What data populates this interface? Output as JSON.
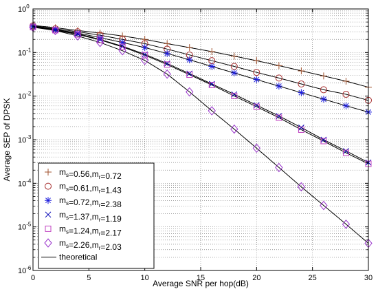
{
  "chart_data": {
    "type": "line",
    "xlabel": "Average SNR per hop(dB)",
    "ylabel": "Average SEP of DPSK",
    "xlim": [
      0,
      30
    ],
    "ylim": [
      1e-06,
      1
    ],
    "yscale": "log",
    "grid": true,
    "x_ticks": [
      "0",
      "5",
      "10",
      "15",
      "20",
      "25",
      "30"
    ],
    "y_ticks": [
      {
        "base": "10",
        "exp": "-6"
      },
      {
        "base": "10",
        "exp": "-5"
      },
      {
        "base": "10",
        "exp": "-4"
      },
      {
        "base": "10",
        "exp": "-3"
      },
      {
        "base": "10",
        "exp": "-2"
      },
      {
        "base": "10",
        "exp": "-1"
      },
      {
        "base": "10",
        "exp": "0"
      }
    ],
    "legend_position": "bottom-left",
    "x": [
      0,
      2,
      4,
      6,
      8,
      10,
      12,
      14,
      16,
      18,
      20,
      22,
      24,
      26,
      28,
      30
    ],
    "series": [
      {
        "name": "m_s=0.56,m_r=0.72",
        "label": {
          "m1": "m",
          "s1": "s",
          "t1": "=0.56,",
          "m2": "m",
          "s2": "r",
          "t2": "=0.72"
        },
        "marker": "plus",
        "color": "#a0522d",
        "values": [
          0.42,
          0.37,
          0.32,
          0.28,
          0.24,
          0.2,
          0.16,
          0.13,
          0.105,
          0.083,
          0.065,
          0.05,
          0.038,
          0.029,
          0.022,
          0.016
        ]
      },
      {
        "name": "m_s=0.61,m_r=1.43",
        "label": {
          "m1": "m",
          "s1": "s",
          "t1": "=0.61,",
          "m2": "m",
          "s2": "r",
          "t2": "=1.43"
        },
        "marker": "circle",
        "color": "#a52a2a",
        "values": [
          0.41,
          0.35,
          0.3,
          0.25,
          0.2,
          0.16,
          0.12,
          0.088,
          0.065,
          0.048,
          0.035,
          0.026,
          0.019,
          0.014,
          0.011,
          0.008
        ]
      },
      {
        "name": "m_s=0.72,m_r=2.38",
        "label": {
          "m1": "m",
          "s1": "s",
          "t1": "=0.72,",
          "m2": "m",
          "s2": "r",
          "t2": "=2.38"
        },
        "marker": "asterisk",
        "color": "#1a1adc",
        "values": [
          0.4,
          0.34,
          0.28,
          0.22,
          0.17,
          0.13,
          0.095,
          0.068,
          0.048,
          0.034,
          0.024,
          0.017,
          0.012,
          0.0085,
          0.006,
          0.0043
        ]
      },
      {
        "name": "m_s=1.37,m_r=1.19",
        "label": {
          "m1": "m",
          "s1": "s",
          "t1": "=1.37,",
          "m2": "m",
          "s2": "r",
          "t2": "=1.19"
        },
        "marker": "x",
        "color": "#0000b4",
        "values": [
          0.39,
          0.33,
          0.27,
          0.2,
          0.14,
          0.091,
          0.056,
          0.033,
          0.019,
          0.011,
          0.0062,
          0.0035,
          0.0019,
          0.001,
          0.00055,
          0.0003
        ]
      },
      {
        "name": "m_s=1.24,m_r=2.17",
        "label": {
          "m1": "m",
          "s1": "s",
          "t1": "=1.24,",
          "m2": "m",
          "s2": "r",
          "t2": "=2.17"
        },
        "marker": "square",
        "color": "#c040c0",
        "values": [
          0.385,
          0.325,
          0.26,
          0.195,
          0.135,
          0.087,
          0.053,
          0.031,
          0.018,
          0.0101,
          0.0057,
          0.0032,
          0.0017,
          0.00093,
          0.0005,
          0.00028
        ]
      },
      {
        "name": "m_s=2.26,m_r=2.03",
        "label": {
          "m1": "m",
          "s1": "s",
          "t1": "=2.26,",
          "m2": "m",
          "s2": "r",
          "t2": "=2.03"
        },
        "marker": "diamond",
        "color": "#9932cc",
        "values": [
          0.38,
          0.32,
          0.24,
          0.17,
          0.11,
          0.066,
          0.032,
          0.0125,
          0.0046,
          0.00175,
          0.00064,
          0.00023,
          8.3e-05,
          3.1e-05,
          1.15e-05,
          4.2e-06
        ]
      }
    ],
    "theoretical": {
      "name": "theoretical",
      "color": "#000000"
    }
  }
}
